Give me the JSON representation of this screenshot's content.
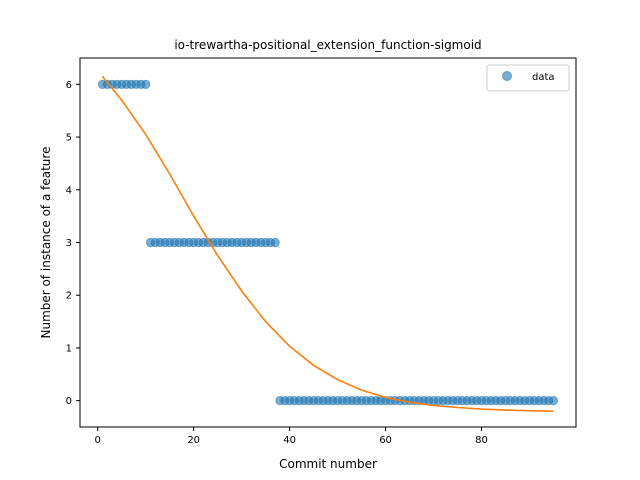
{
  "chart_data": {
    "type": "scatter",
    "title": "io-trewartha-positional_extension_function-sigmoid",
    "xlabel": "Commit number",
    "ylabel": "Number of instance of a feature",
    "xlim": [
      -3.7,
      99.7
    ],
    "ylim": [
      -0.5,
      6.5
    ],
    "xticks": [
      0,
      20,
      40,
      60,
      80
    ],
    "yticks": [
      0,
      1,
      2,
      3,
      4,
      5,
      6
    ],
    "grid": false,
    "legend_position": "top-right",
    "series": [
      {
        "name": "data",
        "kind": "scatter",
        "color": "#1f77b4",
        "segments": [
          {
            "x_from": 1,
            "x_to": 10,
            "y": 6
          },
          {
            "x_from": 11,
            "x_to": 37,
            "y": 3
          },
          {
            "x_from": 38,
            "x_to": 95,
            "y": 0
          }
        ]
      },
      {
        "kind": "line",
        "color": "#ff7f0e",
        "x": [
          1,
          5,
          10,
          15,
          20,
          25,
          30,
          35,
          40,
          45,
          50,
          55,
          60,
          65,
          70,
          75,
          80,
          85,
          90,
          95
        ],
        "y": [
          6.15,
          5.7,
          5.05,
          4.3,
          3.5,
          2.75,
          2.08,
          1.5,
          1.03,
          0.67,
          0.4,
          0.2,
          0.06,
          -0.03,
          -0.09,
          -0.13,
          -0.16,
          -0.18,
          -0.19,
          -0.2
        ]
      }
    ]
  }
}
